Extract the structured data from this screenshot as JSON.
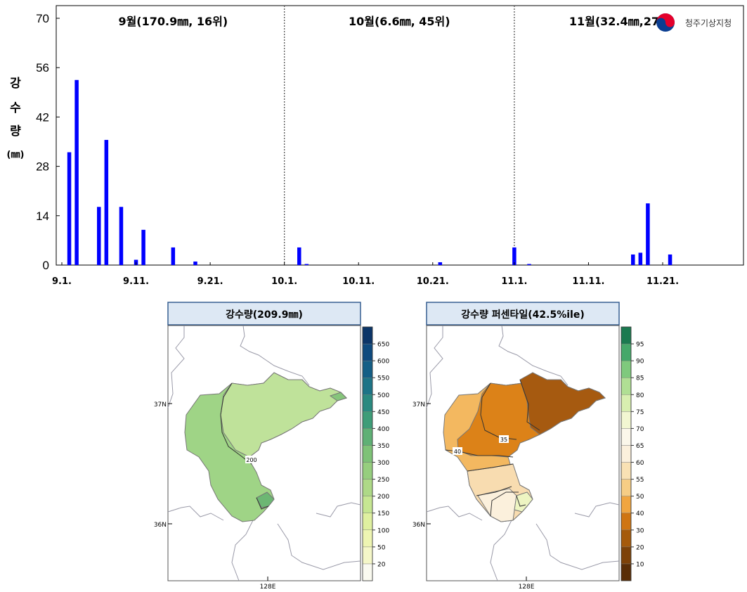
{
  "agency_logo": {
    "label": "청주기상지청",
    "colors": [
      "#e4002b",
      "#0a3d91"
    ]
  },
  "chart_data": [
    {
      "type": "bar",
      "title": "",
      "ylabel_chars": [
        "강",
        "수",
        "량",
        "(㎜)"
      ],
      "ylim": [
        0,
        70
      ],
      "yticks": [
        0,
        14,
        28,
        42,
        56,
        70
      ],
      "x_domain": [
        0,
        90
      ],
      "xticks": [
        {
          "label": "9.1.",
          "day": 0
        },
        {
          "label": "9.11.",
          "day": 10
        },
        {
          "label": "9.21.",
          "day": 20
        },
        {
          "label": "10.1.",
          "day": 30
        },
        {
          "label": "10.11.",
          "day": 40
        },
        {
          "label": "10.21.",
          "day": 50
        },
        {
          "label": "11.1.",
          "day": 61
        },
        {
          "label": "11.11.",
          "day": 71
        },
        {
          "label": "11.21.",
          "day": 81
        }
      ],
      "month_dividers": [
        30,
        61
      ],
      "month_labels": [
        {
          "text": "9월(170.9㎜, 16위)",
          "center_day": 15
        },
        {
          "text": "10월(6.6㎜, 45위)",
          "center_day": 45.5
        },
        {
          "text": "11월(32.4㎜,27위)",
          "center_day": 75.5
        }
      ],
      "bar_color": "#0000ff",
      "bars": [
        {
          "day": 1,
          "value": 32
        },
        {
          "day": 2,
          "value": 52.5
        },
        {
          "day": 5,
          "value": 16.5
        },
        {
          "day": 6,
          "value": 35.5
        },
        {
          "day": 8,
          "value": 16.5
        },
        {
          "day": 10,
          "value": 1.5
        },
        {
          "day": 11,
          "value": 10
        },
        {
          "day": 15,
          "value": 5
        },
        {
          "day": 18,
          "value": 1
        },
        {
          "day": 32,
          "value": 5
        },
        {
          "day": 33,
          "value": 0.3
        },
        {
          "day": 51,
          "value": 0.8
        },
        {
          "day": 61,
          "value": 5
        },
        {
          "day": 63,
          "value": 0.3
        },
        {
          "day": 77,
          "value": 3
        },
        {
          "day": 78,
          "value": 3.5
        },
        {
          "day": 79,
          "value": 17.5
        },
        {
          "day": 82,
          "value": 3
        }
      ]
    },
    {
      "type": "heatmap",
      "title": "강수량(209.9㎜)",
      "lat_labels": [
        "37N",
        "36N"
      ],
      "lon_label": "128E",
      "contour_labels": [
        "200"
      ],
      "colorbar_ticks": [
        "20",
        "50",
        "100",
        "150",
        "200",
        "250",
        "300",
        "350",
        "400",
        "450",
        "500",
        "550",
        "600",
        "650"
      ],
      "colorbar_colors": [
        "#fafaf0",
        "#f5f7c8",
        "#eef5b2",
        "#dff0a0",
        "#c6e692",
        "#aed987",
        "#96ce7e",
        "#7ec277",
        "#5fb075",
        "#3e9d78",
        "#2a8a80",
        "#1d7487",
        "#145f86",
        "#0e4a7e",
        "#0b3568"
      ]
    },
    {
      "type": "heatmap",
      "title": "강수량 퍼센타일(42.5%ile)",
      "lat_labels": [
        "37N",
        "36N"
      ],
      "lon_label": "128E",
      "contour_labels": [
        "40",
        "35"
      ],
      "colorbar_ticks": [
        "10",
        "20",
        "30",
        "40",
        "50",
        "55",
        "60",
        "65",
        "70",
        "75",
        "80",
        "85",
        "90",
        "95"
      ],
      "colorbar_colors": [
        "#5a2e06",
        "#7d4208",
        "#a55a0b",
        "#cf7512",
        "#f0a540",
        "#f6cd85",
        "#f9e1b4",
        "#fbf0dc",
        "#fbf7ea",
        "#f2f7d2",
        "#d8efb0",
        "#b0df94",
        "#7fc97d",
        "#45a86a",
        "#1b7a50"
      ]
    }
  ]
}
